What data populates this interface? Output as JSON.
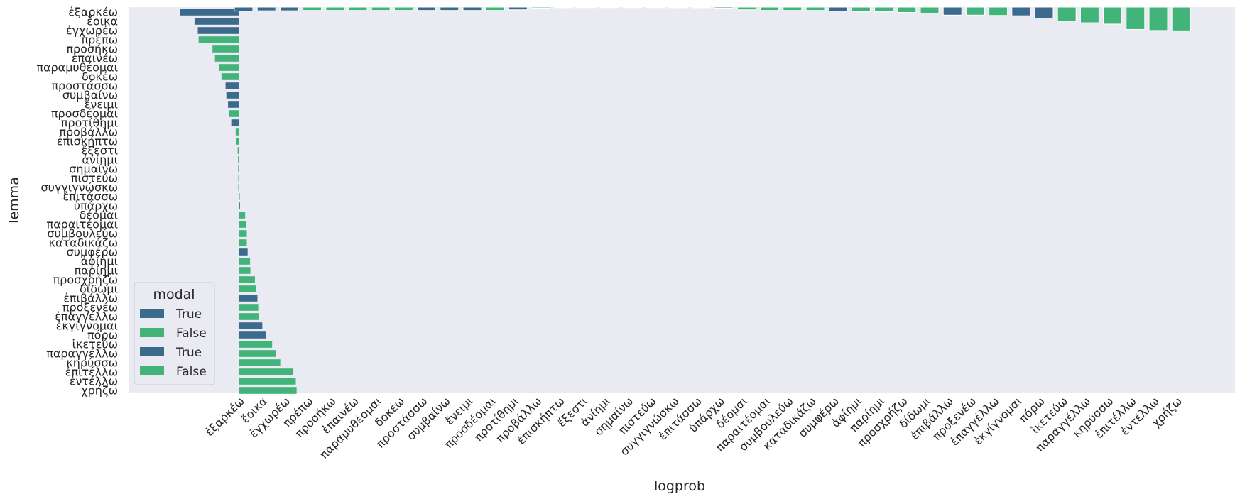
{
  "chart_data": {
    "type": "bar",
    "xlabel": "logprob",
    "ylabel": "lemma",
    "grid": false,
    "legend": {
      "title": "modal",
      "placement": "lower-left",
      "entries": [
        {
          "label": "True",
          "color": "#3b6a8c"
        },
        {
          "label": "False",
          "color": "#42b47a"
        },
        {
          "label": "True",
          "color": "#3b6a8c"
        },
        {
          "label": "False",
          "color": "#42b47a"
        }
      ]
    },
    "colors": {
      "True": "#3b6a8c",
      "False": "#42b47a",
      "background": "#eaeaf2"
    },
    "panels": [
      {
        "orientation": "horizontal",
        "categories": [
          "ἐξαρκέω",
          "ἔοικα",
          "ἐγχωρέω",
          "πρέπω",
          "προσήκω",
          "ἐπαινέω",
          "παραμυθέομαι",
          "δοκέω",
          "προστάσσω",
          "συμβαίνω",
          "ἔνειμι",
          "προσδέομαι",
          "προτίθημι",
          "προβάλλω",
          "ἐπισκήπτω",
          "ἔξεστι",
          "ἀνίημι",
          "σημαίνω",
          "πιστεύω",
          "συγγιγνώσκω",
          "ἐπιτάσσω",
          "ὑπάρχω",
          "δέομαι",
          "παραιτέομαι",
          "συμβουλεύω",
          "καταδικάζω",
          "συμφέρω",
          "ἀφίημι",
          "παρίημι",
          "προσχρήζω",
          "δίδωμι",
          "ἐπιβάλλω",
          "προξενέω",
          "ἐπαγγέλλω",
          "ἐκγίγνομαι",
          "πόρω",
          "ἱκετεύω",
          "παραγγέλλω",
          "κηρύσσω",
          "ἐπιτέλλω",
          "ἐντέλλω",
          "χρήζω"
        ],
        "modal": [
          true,
          true,
          true,
          false,
          false,
          false,
          false,
          false,
          true,
          true,
          true,
          false,
          true,
          false,
          false,
          false,
          false,
          false,
          false,
          false,
          false,
          true,
          false,
          false,
          false,
          false,
          true,
          false,
          false,
          false,
          false,
          true,
          false,
          false,
          true,
          true,
          false,
          false,
          false,
          false,
          false,
          false
        ],
        "values": [
          -3.6,
          -2.7,
          -2.5,
          -2.45,
          -1.6,
          -1.45,
          -1.2,
          -1.05,
          -0.8,
          -0.75,
          -0.65,
          -0.6,
          -0.45,
          -0.18,
          -0.15,
          -0.06,
          -0.04,
          -0.03,
          -0.02,
          -0.02,
          0.07,
          0.08,
          0.4,
          0.45,
          0.5,
          0.5,
          0.55,
          0.7,
          0.72,
          1.0,
          1.05,
          1.15,
          1.2,
          1.25,
          1.45,
          1.65,
          2.05,
          2.3,
          2.55,
          3.35,
          3.5,
          3.55
        ],
        "xlim": [
          -6.5,
          3.6
        ]
      },
      {
        "orientation": "vertical",
        "categories": [
          "ἐξαρκέω",
          "ἔοικα",
          "ἐγχωρέω",
          "πρέπω",
          "προσήκω",
          "ἐπαινέω",
          "παραμυθέομαι",
          "δοκέω",
          "προστάσσω",
          "συμβαίνω",
          "ἔνειμι",
          "προσδέομαι",
          "προτίθημι",
          "προβάλλω",
          "ἐπισκήπτω",
          "ἔξεστι",
          "ἀνίημι",
          "σημαίνω",
          "πιστεύω",
          "συγγιγνώσκω",
          "ἐπιτάσσω",
          "ὑπάρχω",
          "δέομαι",
          "παραιτέομαι",
          "συμβουλεύω",
          "καταδικάζω",
          "συμφέρω",
          "ἀφίημι",
          "παρίημι",
          "προσχρήζω",
          "δίδωμι",
          "ἐπιβάλλω",
          "προξενέω",
          "ἐπαγγέλλω",
          "ἐκγίγνομαι",
          "πόρω",
          "ἱκετεύω",
          "παραγγέλλω",
          "κηρύσσω",
          "ἐπιτέλλω",
          "ἐντέλλω",
          "χρήζω"
        ],
        "modal": [
          true,
          true,
          true,
          false,
          false,
          false,
          false,
          false,
          true,
          true,
          true,
          false,
          true,
          false,
          false,
          false,
          false,
          false,
          false,
          false,
          false,
          true,
          false,
          false,
          false,
          false,
          true,
          false,
          false,
          false,
          false,
          true,
          false,
          false,
          true,
          true,
          false,
          false,
          false,
          false,
          false,
          false
        ],
        "values": [
          -0.6,
          -0.55,
          -0.55,
          -0.5,
          -0.5,
          -0.5,
          -0.5,
          -0.5,
          -0.5,
          -0.5,
          -0.5,
          -0.5,
          -0.4,
          -0.15,
          -0.1,
          -0.08,
          -0.07,
          -0.06,
          -0.07,
          -0.1,
          -0.1,
          -0.15,
          -0.4,
          -0.5,
          -0.5,
          -0.5,
          -0.6,
          -0.7,
          -0.7,
          -0.8,
          -0.9,
          -1.2,
          -1.2,
          -1.25,
          -1.3,
          -1.65,
          -2.1,
          -2.35,
          -2.55,
          -3.35,
          -3.5,
          -3.55
        ],
        "ylim": [
          -12,
          0
        ]
      }
    ]
  }
}
